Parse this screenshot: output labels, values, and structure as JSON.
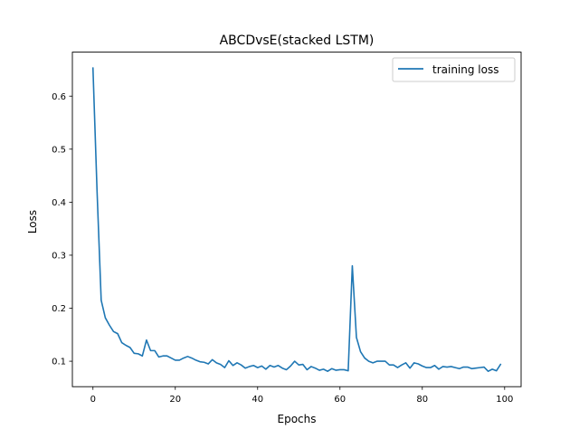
{
  "chart_data": {
    "type": "line",
    "title": "ABCDvsE(stacked LSTM)",
    "xlabel": "Epochs",
    "ylabel": "Loss",
    "xlim": [
      -5.0,
      104.0
    ],
    "ylim": [
      0.052,
      0.683
    ],
    "xticks": [
      0,
      20,
      40,
      60,
      80,
      100
    ],
    "yticks": [
      0.1,
      0.2,
      0.3,
      0.4,
      0.5,
      0.6
    ],
    "grid": false,
    "legend_position": "upper right",
    "series": [
      {
        "name": "training loss",
        "color": "#1f77b4",
        "x": [
          0,
          1,
          2,
          3,
          4,
          5,
          6,
          7,
          8,
          9,
          10,
          11,
          12,
          13,
          14,
          15,
          16,
          17,
          18,
          19,
          20,
          21,
          22,
          23,
          24,
          25,
          26,
          27,
          28,
          29,
          30,
          31,
          32,
          33,
          34,
          35,
          36,
          37,
          38,
          39,
          40,
          41,
          42,
          43,
          44,
          45,
          46,
          47,
          48,
          49,
          50,
          51,
          52,
          53,
          54,
          55,
          56,
          57,
          58,
          59,
          60,
          61,
          62,
          63,
          64,
          65,
          66,
          67,
          68,
          69,
          70,
          71,
          72,
          73,
          74,
          75,
          76,
          77,
          78,
          79,
          80,
          81,
          82,
          83,
          84,
          85,
          86,
          87,
          88,
          89,
          90,
          91,
          92,
          93,
          94,
          95,
          96,
          97,
          98,
          99
        ],
        "y": [
          0.653,
          0.42,
          0.215,
          0.182,
          0.168,
          0.156,
          0.152,
          0.135,
          0.13,
          0.126,
          0.115,
          0.114,
          0.11,
          0.14,
          0.12,
          0.12,
          0.108,
          0.11,
          0.11,
          0.106,
          0.102,
          0.102,
          0.106,
          0.109,
          0.106,
          0.102,
          0.099,
          0.098,
          0.095,
          0.103,
          0.097,
          0.094,
          0.088,
          0.101,
          0.092,
          0.097,
          0.093,
          0.087,
          0.09,
          0.092,
          0.088,
          0.091,
          0.085,
          0.092,
          0.089,
          0.092,
          0.087,
          0.084,
          0.091,
          0.1,
          0.093,
          0.094,
          0.084,
          0.09,
          0.087,
          0.083,
          0.085,
          0.081,
          0.086,
          0.083,
          0.084,
          0.084,
          0.082,
          0.28,
          0.145,
          0.118,
          0.106,
          0.1,
          0.097,
          0.1,
          0.1,
          0.1,
          0.093,
          0.093,
          0.088,
          0.093,
          0.097,
          0.087,
          0.097,
          0.095,
          0.091,
          0.088,
          0.088,
          0.092,
          0.085,
          0.09,
          0.089,
          0.09,
          0.088,
          0.086,
          0.089,
          0.089,
          0.086,
          0.087,
          0.088,
          0.089,
          0.081,
          0.085,
          0.082,
          0.094
        ]
      }
    ]
  }
}
